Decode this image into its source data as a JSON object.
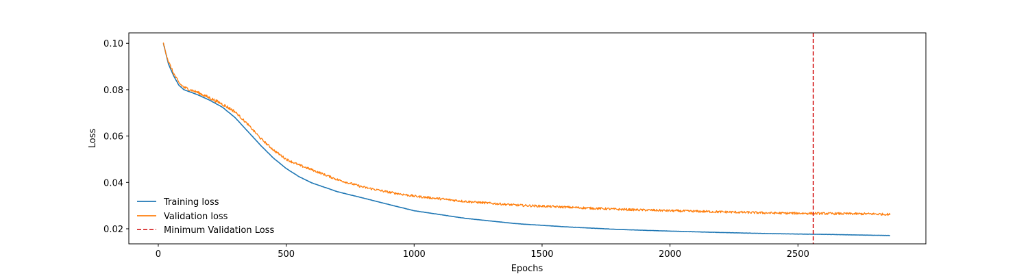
{
  "chart_data": {
    "type": "line",
    "title": "",
    "xlabel": "Epochs",
    "ylabel": "Loss",
    "xlim": [
      -115,
      3000
    ],
    "ylim": [
      0.0135,
      0.1045
    ],
    "xticks": [
      0,
      500,
      1000,
      1500,
      2000,
      2500
    ],
    "xtick_labels": [
      "0",
      "500",
      "1000",
      "1500",
      "2000",
      "2500"
    ],
    "yticks": [
      0.02,
      0.04,
      0.06,
      0.08,
      0.1
    ],
    "ytick_labels": [
      "0.02",
      "0.04",
      "0.06",
      "0.08",
      "0.10"
    ],
    "grid": false,
    "legend_position": "lower-left",
    "series": [
      {
        "name": "Training loss",
        "color": "#1f77b4",
        "style": "solid",
        "x": [
          20,
          40,
          60,
          80,
          100,
          150,
          200,
          250,
          300,
          350,
          400,
          450,
          500,
          550,
          600,
          700,
          800,
          900,
          1000,
          1200,
          1400,
          1600,
          1800,
          2000,
          2200,
          2400,
          2600,
          2800,
          2860
        ],
        "y": [
          0.1,
          0.091,
          0.086,
          0.082,
          0.08,
          0.078,
          0.0755,
          0.0725,
          0.068,
          0.062,
          0.056,
          0.0505,
          0.046,
          0.0425,
          0.0398,
          0.036,
          0.0333,
          0.0305,
          0.0278,
          0.0245,
          0.0222,
          0.0208,
          0.0197,
          0.019,
          0.0184,
          0.0179,
          0.0176,
          0.0172,
          0.0171
        ]
      },
      {
        "name": "Validation loss",
        "color": "#ff7f0e",
        "style": "solid",
        "x": [
          20,
          40,
          60,
          80,
          100,
          150,
          200,
          250,
          300,
          350,
          400,
          450,
          500,
          550,
          600,
          700,
          800,
          900,
          1000,
          1200,
          1400,
          1600,
          1800,
          2000,
          2200,
          2400,
          2600,
          2800,
          2860
        ],
        "y": [
          0.1,
          0.092,
          0.087,
          0.083,
          0.081,
          0.079,
          0.0765,
          0.0738,
          0.0705,
          0.065,
          0.059,
          0.054,
          0.05,
          0.0475,
          0.0455,
          0.0412,
          0.038,
          0.0358,
          0.0341,
          0.0318,
          0.0302,
          0.0293,
          0.0284,
          0.0278,
          0.0273,
          0.0268,
          0.0266,
          0.0264,
          0.0262
        ]
      },
      {
        "name": "Minimum Validation Loss",
        "color": "#d62728",
        "style": "dashed",
        "vline_x": 2560
      }
    ]
  }
}
